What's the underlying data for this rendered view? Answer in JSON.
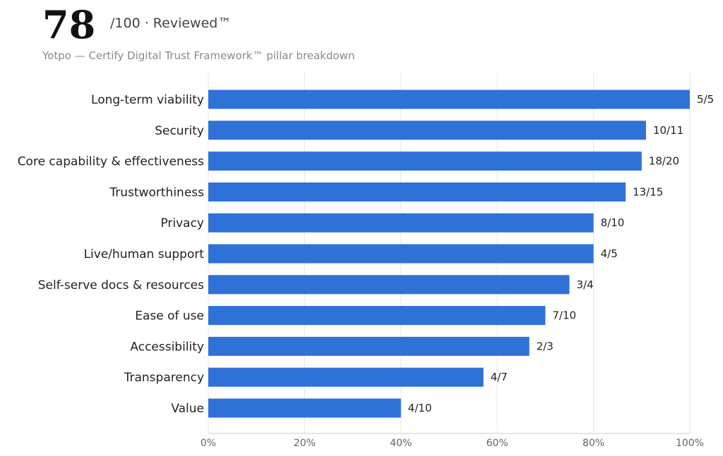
{
  "header": {
    "score": "78",
    "score_suffix": "/100 · Reviewed™",
    "subtitle": "Yotpo — Certify Digital Trust Framework™ pillar breakdown"
  },
  "colors": {
    "bar": "#2e72d8",
    "grid": "#e6e6e6",
    "axis": "#cccccc"
  },
  "chart_data": {
    "type": "bar",
    "orientation": "horizontal",
    "categories": [
      "Long-term viability",
      "Security",
      "Core capability & effectiveness",
      "Trustworthiness",
      "Privacy",
      "Live/human support",
      "Self-serve docs & resources",
      "Ease of use",
      "Accessibility",
      "Transparency",
      "Value"
    ],
    "values": [
      100,
      90.9,
      90,
      86.67,
      80,
      80,
      75,
      70,
      66.67,
      57.14,
      40
    ],
    "data_labels": [
      "5/5",
      "10/11",
      "18/20",
      "13/15",
      "8/10",
      "4/5",
      "3/4",
      "7/10",
      "2/3",
      "4/7",
      "4/10"
    ],
    "xlim": [
      0,
      100
    ],
    "xticks": [
      0,
      20,
      40,
      60,
      80,
      100
    ],
    "xtick_labels": [
      "0%",
      "20%",
      "40%",
      "60%",
      "80%",
      "100%"
    ],
    "grid": true,
    "xlabel": "",
    "ylabel": ""
  }
}
